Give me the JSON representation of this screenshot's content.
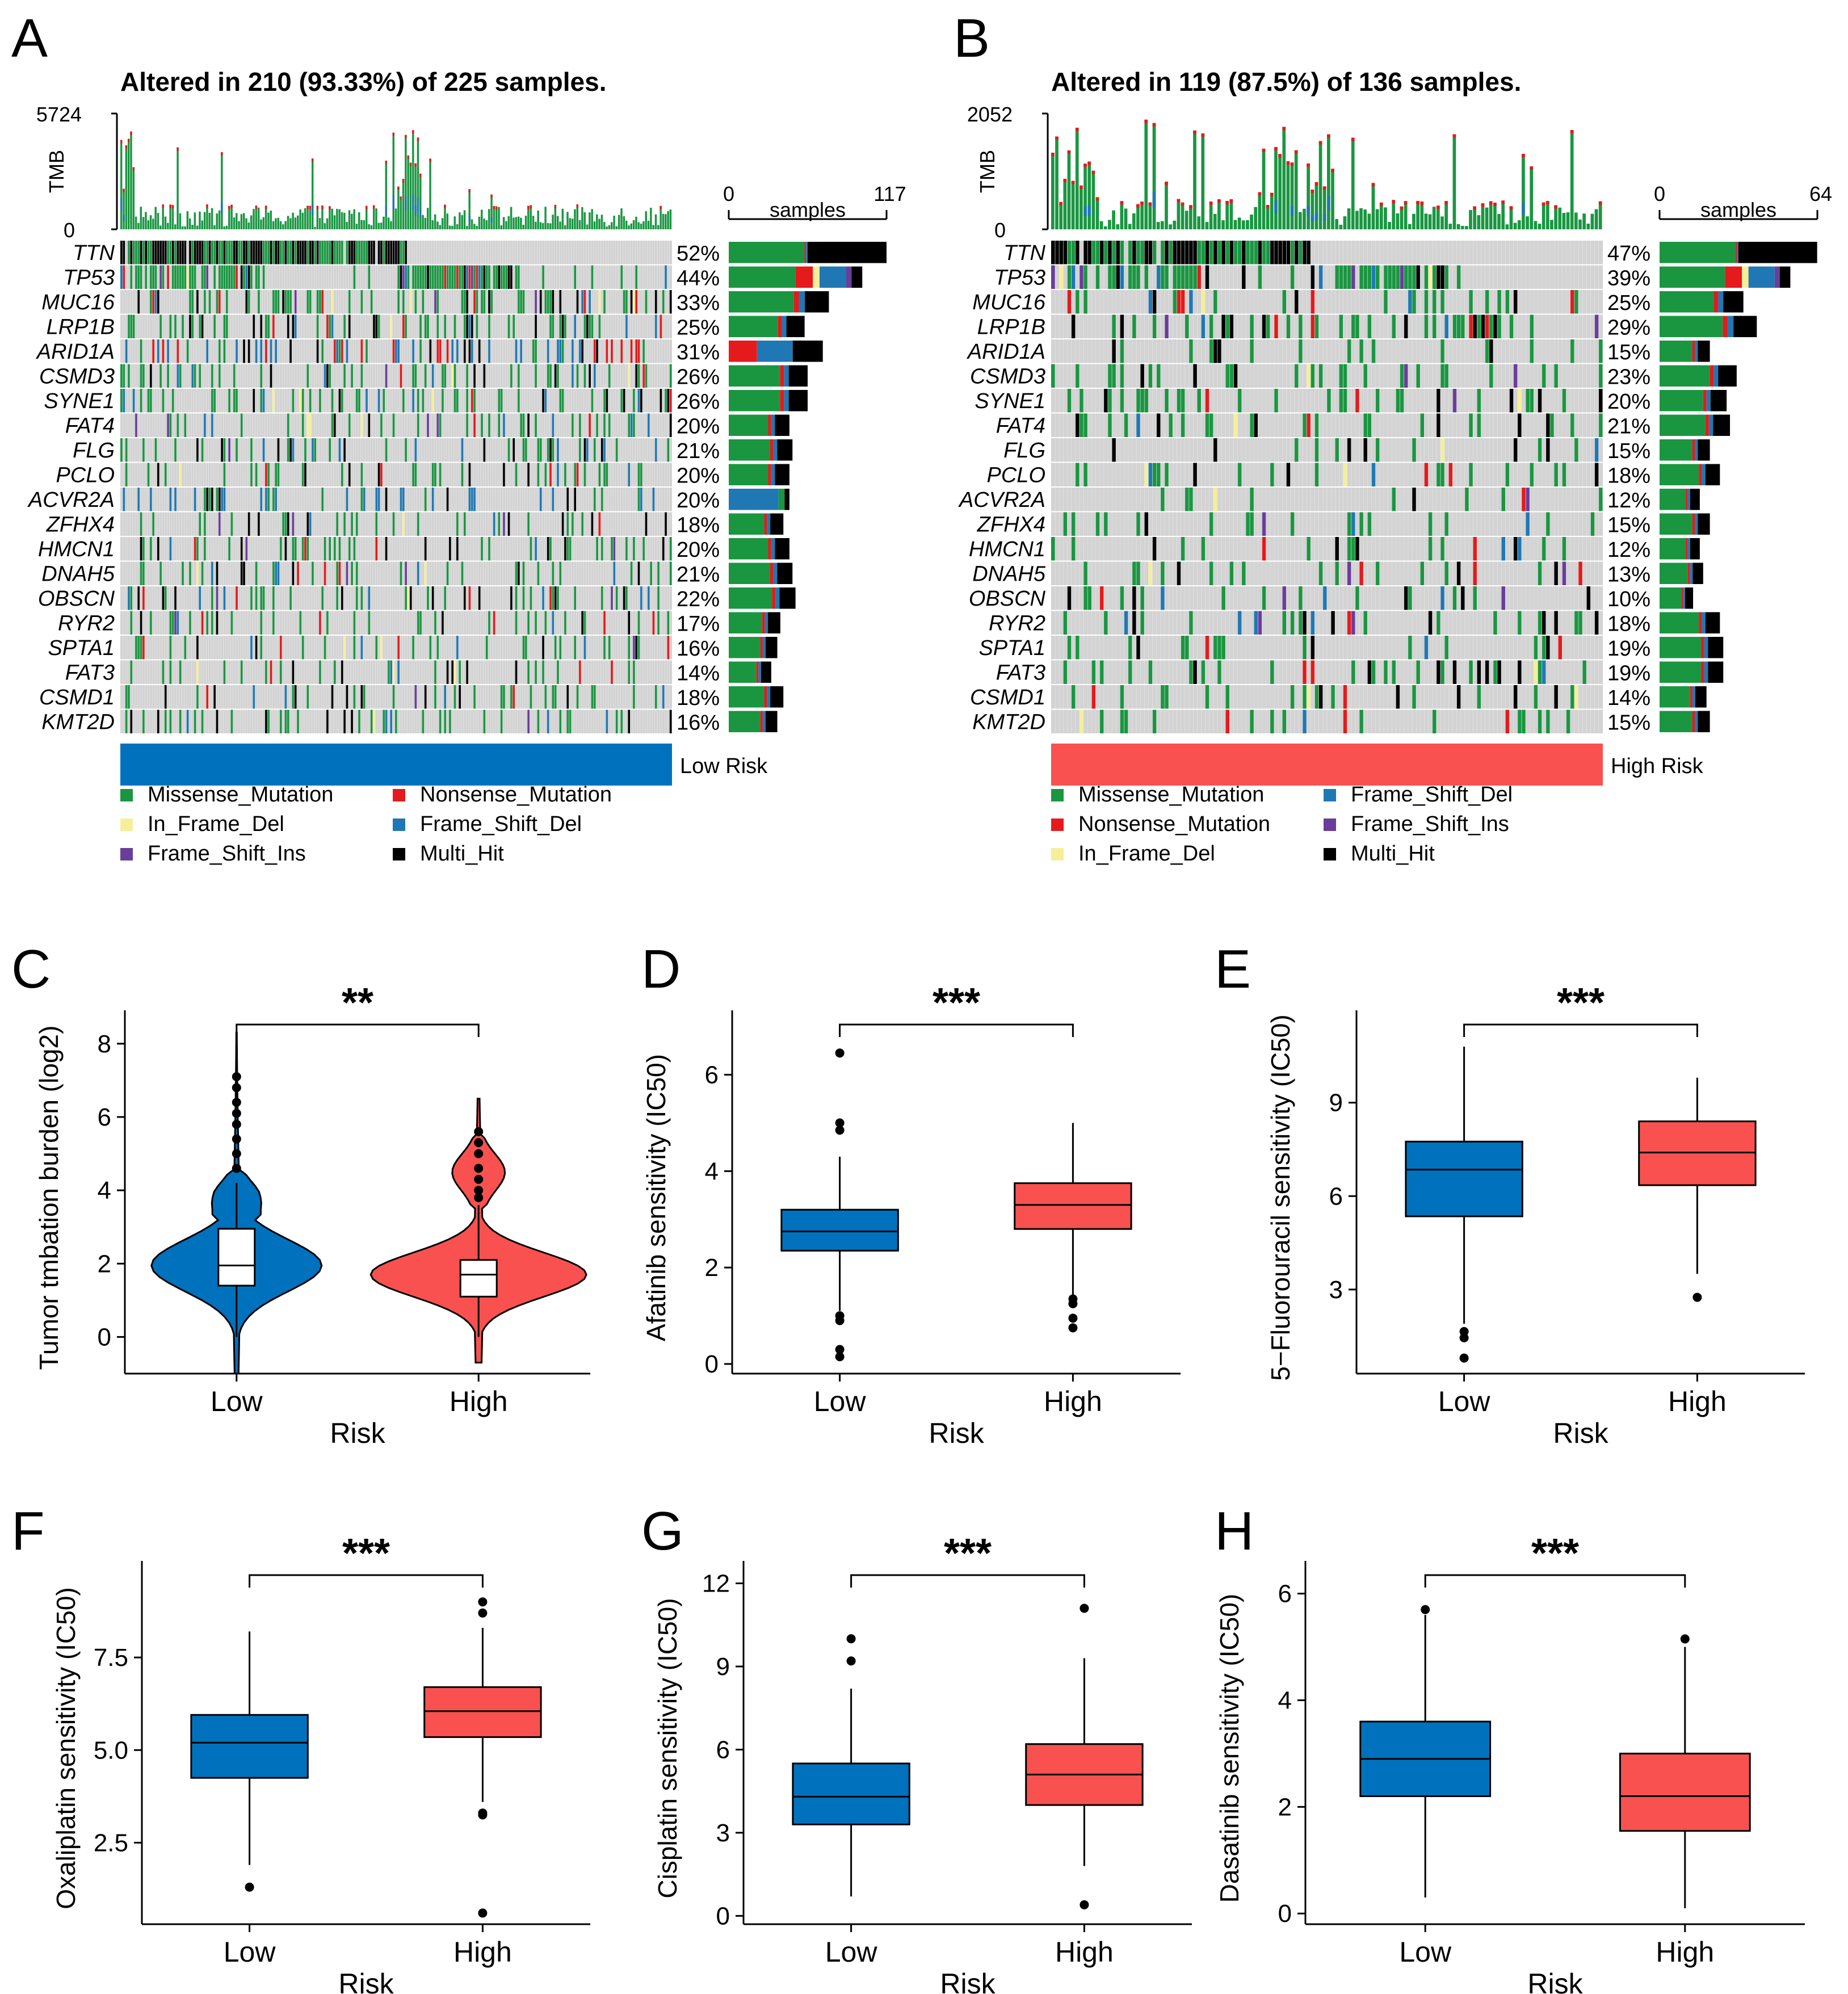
{
  "colors": {
    "missense": "#1a9641",
    "nonsense": "#e41a1c",
    "in_frame_del": "#f5ef9a",
    "frame_shift_del": "#1f78b4",
    "frame_shift_ins": "#6a3d9a",
    "multi_hit": "#000000",
    "empty": "#d3d3d3",
    "low": "#0072bd",
    "high": "#f8514f"
  },
  "chart_data": [
    {
      "panel": "A",
      "type": "oncoplot",
      "title": "Altered in 210 (93.33%) of 225 samples.",
      "tmb_label": "TMB",
      "tmb_max": "5724",
      "tmb_min": "0",
      "samples_label": "samples",
      "samples_min": "0",
      "samples_max": "117",
      "sample_count": 225,
      "group_label": "Low Risk",
      "group_color": "low",
      "genes": [
        "TTN",
        "TP53",
        "MUC16",
        "LRP1B",
        "ARID1A",
        "CSMD3",
        "SYNE1",
        "FAT4",
        "FLG",
        "PCLO",
        "ACVR2A",
        "ZFHX4",
        "HMCN1",
        "DNAH5",
        "OBSCN",
        "RYR2",
        "SPTA1",
        "FAT3",
        "CSMD1",
        "KMT2D"
      ],
      "percents": [
        "52%",
        "44%",
        "33%",
        "25%",
        "31%",
        "26%",
        "26%",
        "20%",
        "21%",
        "20%",
        "20%",
        "18%",
        "20%",
        "21%",
        "22%",
        "17%",
        "16%",
        "14%",
        "18%",
        "16%"
      ],
      "legend": [
        "Missense_Mutation",
        "Nonsense_Mutation",
        "In_Frame_Del",
        "Frame_Shift_Del",
        "Frame_Shift_Ins",
        "Multi_Hit"
      ],
      "legend_keys": [
        "missense",
        "nonsense",
        "in_frame_del",
        "frame_shift_del",
        "frame_shift_ins",
        "multi_hit"
      ]
    },
    {
      "panel": "B",
      "type": "oncoplot",
      "title": "Altered in 119 (87.5%) of 136 samples.",
      "tmb_label": "TMB",
      "tmb_max": "2052",
      "tmb_min": "0",
      "samples_label": "samples",
      "samples_min": "0",
      "samples_max": "64",
      "sample_count": 136,
      "group_label": "High Risk",
      "group_color": "high",
      "genes": [
        "TTN",
        "TP53",
        "MUC16",
        "LRP1B",
        "ARID1A",
        "CSMD3",
        "SYNE1",
        "FAT4",
        "FLG",
        "PCLO",
        "ACVR2A",
        "ZFHX4",
        "HMCN1",
        "DNAH5",
        "OBSCN",
        "RYR2",
        "SPTA1",
        "FAT3",
        "CSMD1",
        "KMT2D"
      ],
      "percents": [
        "47%",
        "39%",
        "25%",
        "29%",
        "15%",
        "23%",
        "20%",
        "21%",
        "15%",
        "18%",
        "12%",
        "15%",
        "12%",
        "13%",
        "10%",
        "18%",
        "19%",
        "19%",
        "14%",
        "15%"
      ],
      "legend": [
        "Missense_Mutation",
        "Frame_Shift_Del",
        "Nonsense_Mutation",
        "Frame_Shift_Ins",
        "In_Frame_Del",
        "Multi_Hit"
      ],
      "legend_keys": [
        "missense",
        "frame_shift_del",
        "nonsense",
        "frame_shift_ins",
        "in_frame_del",
        "multi_hit"
      ]
    },
    {
      "panel": "C",
      "type": "violin",
      "ylabel": "Tumor tmbation burden (log2)",
      "xlabel": "Risk",
      "categories": [
        "Low",
        "High"
      ],
      "ylim": [
        -1,
        8.6
      ],
      "yticks": [
        0,
        2,
        4,
        6,
        8
      ],
      "significance": "**",
      "series": [
        {
          "category": "Low",
          "min": -1.0,
          "q1": 1.4,
          "median": 1.95,
          "q3": 2.95,
          "whisker_low": 0.0,
          "whisker_high": 4.2,
          "max": 8.3,
          "outliers": [
            4.6,
            5.0,
            5.4,
            5.8,
            6.1,
            6.4,
            6.8,
            7.1
          ]
        },
        {
          "category": "High",
          "min": -0.7,
          "q1": 1.1,
          "median": 1.7,
          "q3": 2.1,
          "whisker_low": 0.0,
          "whisker_high": 3.6,
          "max": 6.5,
          "outliers": [
            3.8,
            4.0,
            4.3,
            4.6,
            5.0,
            5.3,
            5.6
          ]
        }
      ]
    },
    {
      "panel": "D",
      "type": "box",
      "ylabel": "Afatinib sensitivity (IC50)",
      "xlabel": "Risk",
      "categories": [
        "Low",
        "High"
      ],
      "ylim": [
        -0.2,
        7.1
      ],
      "yticks": [
        0,
        2,
        4,
        6
      ],
      "significance": "***",
      "series": [
        {
          "category": "Low",
          "q1": 2.35,
          "median": 2.75,
          "q3": 3.2,
          "whisker_low": 1.1,
          "whisker_high": 4.3,
          "outliers": [
            6.45,
            5.0,
            4.85,
            1.0,
            0.9,
            0.3,
            0.15
          ]
        },
        {
          "category": "High",
          "q1": 2.8,
          "median": 3.3,
          "q3": 3.75,
          "whisker_low": 1.4,
          "whisker_high": 5.0,
          "outliers": [
            1.35,
            1.25,
            0.95,
            0.75
          ]
        }
      ]
    },
    {
      "panel": "E",
      "type": "box",
      "ylabel": "5−Fluorouracil sensitivity (IC50)",
      "xlabel": "Risk",
      "categories": [
        "Low",
        "High"
      ],
      "ylim": [
        0.3,
        11.6
      ],
      "yticks": [
        3,
        6,
        9
      ],
      "significance": "***",
      "series": [
        {
          "category": "Low",
          "q1": 5.35,
          "median": 6.85,
          "q3": 7.75,
          "whisker_low": 1.9,
          "whisker_high": 10.8,
          "outliers": [
            1.65,
            1.45,
            0.8
          ]
        },
        {
          "category": "High",
          "q1": 6.35,
          "median": 7.4,
          "q3": 8.4,
          "whisker_low": 3.5,
          "whisker_high": 9.8,
          "outliers": [
            2.75
          ]
        }
      ]
    },
    {
      "panel": "F",
      "type": "box",
      "ylabel": "Oxaliplatin sensitivity (IC50)",
      "xlabel": "Risk",
      "categories": [
        "Low",
        "High"
      ],
      "ylim": [
        0.3,
        9.8
      ],
      "yticks": [
        2.5,
        5.0,
        7.5
      ],
      "yticklabels": [
        "2.5",
        "5.0",
        "7.5"
      ],
      "significance": "***",
      "series": [
        {
          "category": "Low",
          "q1": 4.25,
          "median": 5.2,
          "q3": 5.95,
          "whisker_low": 1.9,
          "whisker_high": 8.2,
          "outliers": [
            1.3
          ]
        },
        {
          "category": "High",
          "q1": 5.35,
          "median": 6.05,
          "q3": 6.7,
          "whisker_low": 3.6,
          "whisker_high": 8.3,
          "outliers": [
            9.0,
            8.7,
            3.3,
            3.25,
            0.6
          ]
        }
      ]
    },
    {
      "panel": "G",
      "type": "box",
      "ylabel": "Cisplatin sensitivity (IC50)",
      "xlabel": "Risk",
      "categories": [
        "Low",
        "High"
      ],
      "ylim": [
        -0.3,
        12.4
      ],
      "yticks": [
        0,
        3,
        6,
        9,
        12
      ],
      "significance": "***",
      "series": [
        {
          "category": "Low",
          "q1": 3.3,
          "median": 4.3,
          "q3": 5.5,
          "whisker_low": 0.7,
          "whisker_high": 8.2,
          "outliers": [
            10.0,
            9.2
          ]
        },
        {
          "category": "High",
          "q1": 4.0,
          "median": 5.1,
          "q3": 6.2,
          "whisker_low": 1.8,
          "whisker_high": 9.3,
          "outliers": [
            11.1,
            0.4
          ]
        }
      ]
    },
    {
      "panel": "H",
      "type": "box",
      "ylabel": "Dasatinib sensitivity (IC50)",
      "xlabel": "Risk",
      "categories": [
        "Low",
        "High"
      ],
      "ylim": [
        -0.2,
        6.4
      ],
      "yticks": [
        0,
        2,
        4,
        6
      ],
      "significance": "***",
      "series": [
        {
          "category": "Low",
          "q1": 2.2,
          "median": 2.9,
          "q3": 3.6,
          "whisker_low": 0.3,
          "whisker_high": 5.6,
          "outliers": [
            5.7
          ]
        },
        {
          "category": "High",
          "q1": 1.55,
          "median": 2.2,
          "q3": 3.0,
          "whisker_low": 0.1,
          "whisker_high": 5.0,
          "outliers": [
            5.15
          ]
        }
      ]
    }
  ]
}
